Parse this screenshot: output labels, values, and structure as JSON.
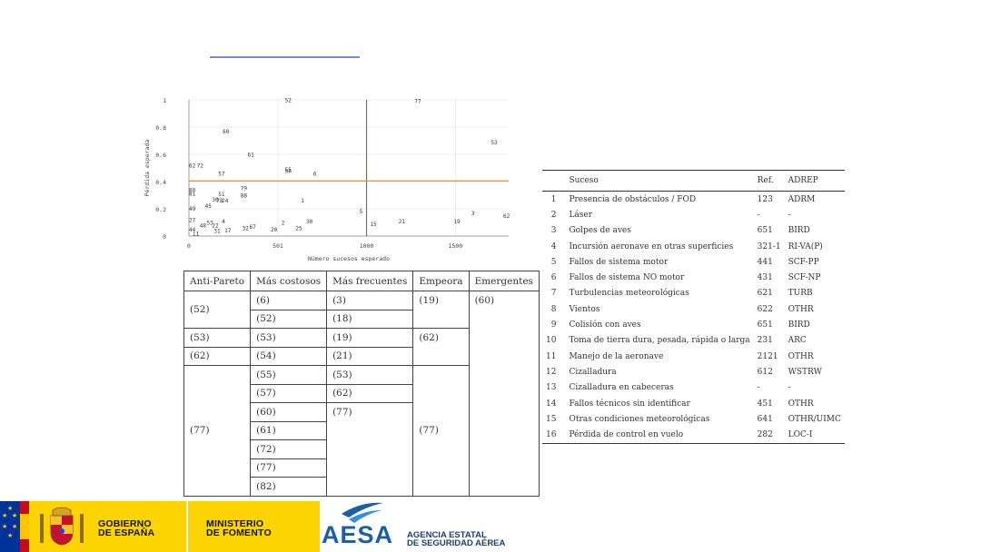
{
  "chart_data": {
    "type": "scatter",
    "xlabel": "Número sucesos esperado",
    "ylabel": "Pérdida esperada",
    "x_ticks": [
      "0",
      "501",
      "1000",
      "1500"
    ],
    "y_ticks": [
      "0",
      "0.2",
      "0.4",
      "0.6",
      "0.8",
      "1"
    ],
    "xlim": [
      0,
      1800
    ],
    "ylim": [
      0,
      1.0
    ],
    "vline_x": 1000,
    "hline_y": 0.405,
    "vline_color": "#2ca02c",
    "hline_color": "#ff8c00",
    "points": [
      {
        "label": "52",
        "x": 540,
        "y": 1.0
      },
      {
        "label": "77",
        "x": 1270,
        "y": 0.995
      },
      {
        "label": "53",
        "x": 1700,
        "y": 0.69
      },
      {
        "label": "60",
        "x": 190,
        "y": 0.77
      },
      {
        "label": "61",
        "x": 330,
        "y": 0.6
      },
      {
        "label": "62",
        "x": 0,
        "y": 0.52
      },
      {
        "label": "72",
        "x": 45,
        "y": 0.52
      },
      {
        "label": "57",
        "x": 165,
        "y": 0.46
      },
      {
        "label": "55",
        "x": 540,
        "y": 0.49
      },
      {
        "label": "56",
        "x": 540,
        "y": 0.48
      },
      {
        "label": "6",
        "x": 700,
        "y": 0.46
      },
      {
        "label": "79",
        "x": 290,
        "y": 0.355
      },
      {
        "label": "80",
        "x": 0,
        "y": 0.34
      },
      {
        "label": "81",
        "x": 0,
        "y": 0.315
      },
      {
        "label": "51",
        "x": 165,
        "y": 0.31
      },
      {
        "label": "88",
        "x": 290,
        "y": 0.3
      },
      {
        "label": "30",
        "x": 130,
        "y": 0.27
      },
      {
        "label": "78",
        "x": 155,
        "y": 0.265
      },
      {
        "label": "24",
        "x": 185,
        "y": 0.265
      },
      {
        "label": "1",
        "x": 630,
        "y": 0.265
      },
      {
        "label": "45",
        "x": 90,
        "y": 0.225
      },
      {
        "label": "49",
        "x": 0,
        "y": 0.205
      },
      {
        "label": "5",
        "x": 960,
        "y": 0.185
      },
      {
        "label": "3",
        "x": 1590,
        "y": 0.17
      },
      {
        "label": "62",
        "x": 1830,
        "y": 0.15
      },
      {
        "label": "30",
        "x": 660,
        "y": 0.11
      },
      {
        "label": "2",
        "x": 520,
        "y": 0.1
      },
      {
        "label": "19",
        "x": 1490,
        "y": 0.11
      },
      {
        "label": "21",
        "x": 1180,
        "y": 0.11
      },
      {
        "label": "15",
        "x": 1020,
        "y": 0.09
      },
      {
        "label": "53",
        "x": 100,
        "y": 0.1
      },
      {
        "label": "4",
        "x": 185,
        "y": 0.11
      },
      {
        "label": "27",
        "x": 0,
        "y": 0.12
      },
      {
        "label": "67",
        "x": 340,
        "y": 0.07
      },
      {
        "label": "32",
        "x": 300,
        "y": 0.06
      },
      {
        "label": "17",
        "x": 200,
        "y": 0.045
      },
      {
        "label": "25",
        "x": 600,
        "y": 0.06
      },
      {
        "label": "20",
        "x": 460,
        "y": 0.05
      },
      {
        "label": "48",
        "x": 60,
        "y": 0.08
      },
      {
        "label": "22",
        "x": 130,
        "y": 0.08
      },
      {
        "label": "44",
        "x": 0,
        "y": 0.05
      },
      {
        "label": "11",
        "x": 20,
        "y": 0.02
      },
      {
        "label": "31",
        "x": 140,
        "y": 0.04
      }
    ]
  },
  "left_table": {
    "headers": [
      "Anti-Pareto",
      "Más costosos",
      "Más frecuentes",
      "Empeora",
      "Emergentes"
    ],
    "anti_pareto": [
      "(52)",
      "(53)",
      "(62)",
      "(77)"
    ],
    "mas_costosos": [
      "(6)",
      "(52)",
      "(53)",
      "(54)",
      "(55)",
      "(57)",
      "(60)",
      "(61)",
      "(72)",
      "(77)",
      "(82)"
    ],
    "mas_frecuentes": [
      "(3)",
      "(18)",
      "(19)",
      "(21)",
      "(53)",
      "(62)",
      "(77)"
    ],
    "empeora": [
      "(19)",
      "(62)",
      "(77)"
    ],
    "emergentes": [
      "(60)"
    ]
  },
  "right_table": {
    "headers": [
      "",
      "Suceso",
      "Ref.",
      "ADREP"
    ],
    "rows": [
      [
        "1",
        "Presencia de obstáculos / FOD",
        "123",
        "ADRM"
      ],
      [
        "2",
        "Láser",
        "-",
        "-"
      ],
      [
        "3",
        "Golpes de aves",
        "651",
        "BIRD"
      ],
      [
        "4",
        "Incursión aeronave en otras superficies",
        "321-1",
        "RI-VA(P)"
      ],
      [
        "5",
        "Fallos de sistema motor",
        "441",
        "SCF-PP"
      ],
      [
        "6",
        "Fallos de sistema NO motor",
        "431",
        "SCF-NP"
      ],
      [
        "7",
        "Turbulencias meteorológicas",
        "621",
        "TURB"
      ],
      [
        "8",
        "Vientos",
        "622",
        "OTHR"
      ],
      [
        "9",
        "Colisión con aves",
        "651",
        "BIRD"
      ],
      [
        "10",
        "Toma de tierra dura, pesada, rápida o larga",
        "231",
        "ARC"
      ],
      [
        "11",
        "Manejo de la aeronave",
        "2121",
        "OTHR"
      ],
      [
        "12",
        "Cizalladura",
        "612",
        "WSTRW"
      ],
      [
        "13",
        "Cizalladura en cabeceras",
        "-",
        "-"
      ],
      [
        "14",
        "Fallos técnicos sin identificar",
        "451",
        "OTHR"
      ],
      [
        "15",
        "Otras condiciones meteorológicas",
        "641",
        "OTHR/UIMC"
      ],
      [
        "16",
        "Pérdida de control en vuelo",
        "282",
        "LOC-I"
      ]
    ]
  },
  "footer": {
    "gov_line1": "GOBIERNO",
    "gov_line2": "DE ESPAÑA",
    "min_line1": "MINISTERIO",
    "min_line2": "DE FOMENTO",
    "aesa_word": "AESA",
    "aesa_line1": "AGENCIA ESTATAL",
    "aesa_line2": "DE SEGURIDAD AÉREA",
    "eu_color": "#003399",
    "gov_color": "#fdd400",
    "aesa_color": "#1b5fa6"
  }
}
